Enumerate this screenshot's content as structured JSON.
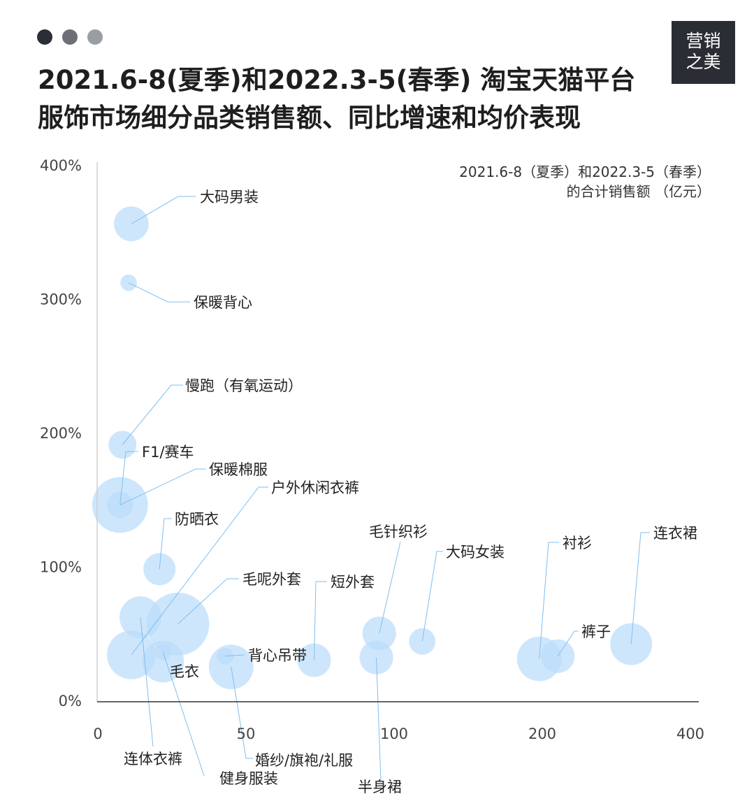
{
  "header": {
    "title_line1": "2021.6-8(夏季)和2022.3-5(春季) 淘宝天猫平台",
    "title_line2": "服饰市场细分品类销售额、同比增速和均价表现",
    "window_dot_colors": [
      "#2b2e36",
      "#6c6f75",
      "#9a9da2"
    ]
  },
  "logo": {
    "line1": "营销",
    "line2": "之美",
    "text": "营销之美"
  },
  "colors": {
    "bubble": "#b9dcfb",
    "leader": "#7fbff0",
    "axis": "#333333"
  },
  "chart_data": {
    "type": "scatter",
    "variant": "bubble",
    "title": "",
    "xlabel_line1": "2021.6-8（夏季）和2022.3-5（春季）",
    "xlabel_line2": "的合计销售额 （亿元）",
    "ylabel": "",
    "x_ticks": [
      0,
      50,
      100,
      200,
      400
    ],
    "x_tick_labels": [
      "0",
      "50",
      "100",
      "200",
      "400"
    ],
    "x_scale": "piecewise (equal spacing between ticks)",
    "y_ticks": [
      0,
      100,
      200,
      300,
      400
    ],
    "y_tick_labels": [
      "0%",
      "100%",
      "200%",
      "300%",
      "400%"
    ],
    "xlim": [
      0,
      400
    ],
    "ylim": [
      0,
      400
    ],
    "grid": false,
    "bubble_size_note": "relative",
    "points": [
      {
        "name": "大码男装",
        "x": 11.3,
        "y": 356,
        "size": 62
      },
      {
        "name": "保暖背心",
        "x": 10.4,
        "y": 312,
        "size": 14
      },
      {
        "name": "慢跑（有氧运动）",
        "x": 8.3,
        "y": 191,
        "size": 40
      },
      {
        "name": "F1/赛车",
        "x": 7.5,
        "y": 146,
        "size": 36
      },
      {
        "name": "保暖棉服",
        "x": 7.5,
        "y": 146,
        "size": 160
      },
      {
        "name": "防晒衣",
        "x": 20.8,
        "y": 98,
        "size": 53
      },
      {
        "name": "连体衣裤",
        "x": 14.4,
        "y": 62,
        "size": 90
      },
      {
        "name": "毛呢外套",
        "x": 27,
        "y": 57,
        "size": 202
      },
      {
        "name": "户外休闲衣裤",
        "x": 11.3,
        "y": 34,
        "size": 122
      },
      {
        "name": "毛衣",
        "x": 22,
        "y": 29,
        "size": 90
      },
      {
        "name": "健身服装",
        "x": 22,
        "y": 36,
        "size": 14
      },
      {
        "name": "背心吊带",
        "x": 43,
        "y": 33,
        "size": 14
      },
      {
        "name": "婚纱/旗袍/礼服",
        "x": 45,
        "y": 25,
        "size": 102
      },
      {
        "name": "短外套",
        "x": 73,
        "y": 30,
        "size": 58
      },
      {
        "name": "毛针织衫",
        "x": 95,
        "y": 50,
        "size": 58
      },
      {
        "name": "半身裙",
        "x": 94,
        "y": 32,
        "size": 58
      },
      {
        "name": "大码女装",
        "x": 119,
        "y": 44,
        "size": 36
      },
      {
        "name": "衬衫",
        "x": 198,
        "y": 31,
        "size": 102
      },
      {
        "name": "裤子",
        "x": 221,
        "y": 33,
        "size": 58
      },
      {
        "name": "连衣裙",
        "x": 320,
        "y": 42,
        "size": 90
      }
    ]
  }
}
